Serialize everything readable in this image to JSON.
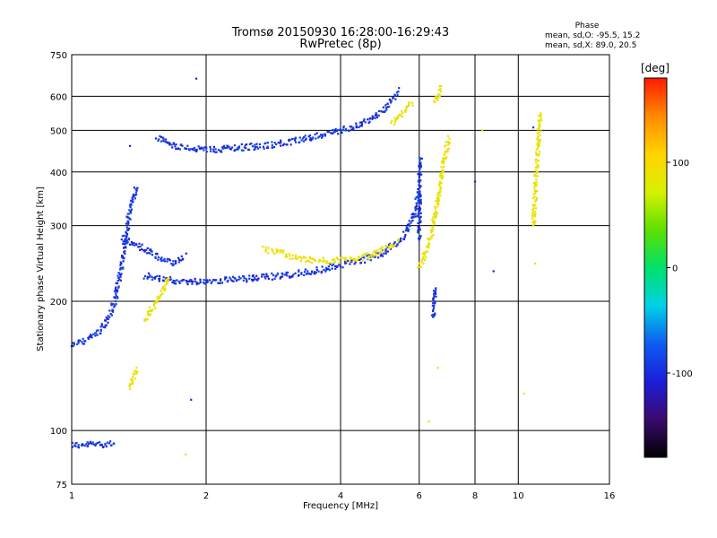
{
  "chart_data": {
    "type": "scatter",
    "title": "Tromsø 20150930 16:28:00-16:29:43",
    "subtitle": "RwPretec (8p)",
    "xlabel": "Frequency [MHz]",
    "ylabel": "Stationary phase Virtual Height [km]",
    "x_scale": "log",
    "y_scale": "log",
    "xlim": [
      1,
      16
    ],
    "ylim": [
      75,
      750
    ],
    "x_ticks": [
      1,
      2,
      4,
      6,
      8,
      10,
      16
    ],
    "y_ticks": [
      75,
      100,
      200,
      300,
      400,
      500,
      600,
      750
    ],
    "grid": true,
    "color_metric": "Phase",
    "stats": {
      "header": "Phase",
      "line_o": "mean, sd,O: -95.5, 15.2",
      "line_x": "mean, sd,X:  89.0, 20.5"
    },
    "colorbar": {
      "label": "[deg]",
      "range": [
        -180,
        180
      ],
      "ticks": [
        100,
        0,
        -100
      ],
      "colors": [
        "#000000",
        "#3a0a6e",
        "#1b1ed8",
        "#0f5cf0",
        "#00d2e6",
        "#00e06a",
        "#5ee000",
        "#d8f000",
        "#ffd400",
        "#ff8a00",
        "#ff1a00"
      ]
    },
    "series": [
      {
        "mode": "O",
        "phase_mean_deg": -95.5,
        "phase_sd_deg": 15.2,
        "traces": [
          {
            "x": [
              1.0,
              1.05,
              1.1,
              1.15,
              1.2,
              1.25
            ],
            "y": [
              93,
              92,
              93,
              93,
              93,
              94
            ]
          },
          {
            "x": [
              1.0,
              1.05,
              1.1,
              1.15,
              1.2,
              1.25,
              1.3,
              1.35,
              1.4
            ],
            "y": [
              158,
              160,
              165,
              170,
              180,
              200,
              250,
              330,
              370
            ]
          },
          {
            "x": [
              1.3,
              1.4,
              1.5,
              1.6,
              1.7,
              1.8
            ],
            "y": [
              280,
              270,
              260,
              250,
              245,
              255
            ]
          },
          {
            "x": [
              1.45,
              1.6,
              1.8,
              2.0,
              2.4,
              3.0,
              3.5,
              4.0,
              4.5,
              5.0,
              5.5,
              5.8,
              6.0
            ],
            "y": [
              230,
              225,
              222,
              223,
              225,
              230,
              235,
              243,
              250,
              260,
              280,
              310,
              360
            ]
          },
          {
            "x": [
              1.55,
              1.7,
              1.9,
              2.0,
              2.3,
              2.7,
              3.1,
              3.5,
              4.0,
              4.5,
              5.0,
              5.4
            ],
            "y": [
              480,
              460,
              452,
              450,
              455,
              460,
              470,
              485,
              500,
              520,
              560,
              620
            ]
          },
          {
            "x": [
              6.0,
              6.0,
              6.05
            ],
            "y": [
              280,
              380,
              430
            ]
          },
          {
            "x": [
              1.9
            ],
            "y": [
              660
            ]
          },
          {
            "x": [
              1.85
            ],
            "y": [
              118
            ]
          },
          {
            "x": [
              1.35
            ],
            "y": [
              460
            ]
          },
          {
            "x": [
              6.45,
              6.5
            ],
            "y": [
              185,
              215
            ]
          },
          {
            "x": [
              8.8
            ],
            "y": [
              235
            ]
          },
          {
            "x": [
              10.8
            ],
            "y": [
              508
            ]
          },
          {
            "x": [
              8.0
            ],
            "y": [
              380
            ]
          }
        ]
      },
      {
        "mode": "X",
        "phase_mean_deg": 89.0,
        "phase_sd_deg": 20.5,
        "traces": [
          {
            "x": [
              1.45,
              1.5,
              1.55,
              1.6,
              1.65
            ],
            "y": [
              180,
              190,
              200,
              210,
              230
            ]
          },
          {
            "x": [
              2.7,
              2.9,
              3.1,
              3.4,
              3.8,
              4.2,
              4.6,
              5.0,
              5.4
            ],
            "y": [
              265,
              260,
              255,
              250,
              248,
              250,
              255,
              265,
              275
            ]
          },
          {
            "x": [
              6.0,
              6.2,
              6.4,
              6.6,
              6.8,
              7.0
            ],
            "y": [
              240,
              260,
              290,
              340,
              420,
              480
            ]
          },
          {
            "x": [
              5.2,
              5.5,
              5.8
            ],
            "y": [
              520,
              550,
              580
            ]
          },
          {
            "x": [
              6.5,
              6.7
            ],
            "y": [
              580,
              630
            ]
          },
          {
            "x": [
              1.35,
              1.4
            ],
            "y": [
              125,
              140
            ]
          },
          {
            "x": [
              1.8
            ],
            "y": [
              88
            ]
          },
          {
            "x": [
              6.3
            ],
            "y": [
              105
            ]
          },
          {
            "x": [
              8.3
            ],
            "y": [
              500
            ]
          },
          {
            "x": [
              10.8,
              11.2
            ],
            "y": [
              300,
              550
            ]
          },
          {
            "x": [
              10.9
            ],
            "y": [
              245
            ]
          },
          {
            "x": [
              10.3
            ],
            "y": [
              122
            ]
          },
          {
            "x": [
              6.6
            ],
            "y": [
              140
            ]
          }
        ]
      }
    ]
  }
}
